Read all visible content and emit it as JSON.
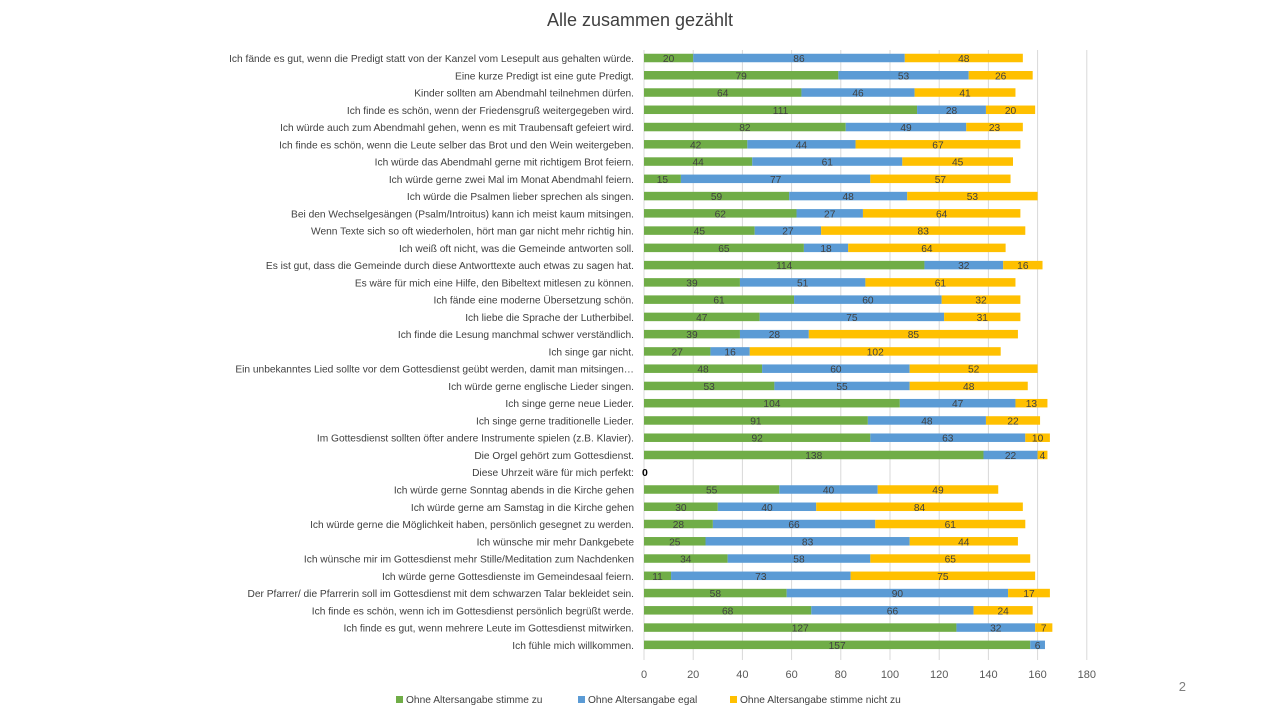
{
  "slide": {
    "title": "Alle zusammen gezählt",
    "page_number": "2"
  },
  "chart_data": {
    "type": "bar",
    "orientation": "horizontal",
    "stacked": true,
    "title": "Alle zusammen gezählt",
    "xlabel": "",
    "ylabel": "",
    "xlim": [
      0,
      180
    ],
    "xticks": [
      0,
      20,
      40,
      60,
      80,
      100,
      120,
      140,
      160,
      180
    ],
    "grid": true,
    "legend_position": "bottom",
    "categories": [
      "Ich fände es gut, wenn die Predigt statt von der Kanzel vom Lesepult aus gehalten würde.",
      "Eine kurze Predigt ist eine gute Predigt.",
      "Kinder sollten am Abendmahl teilnehmen dürfen.",
      "Ich finde es schön, wenn der Friedensgruß weitergegeben wird.",
      "Ich würde auch zum Abendmahl gehen, wenn es mit Traubensaft gefeiert wird.",
      "Ich finde es schön, wenn die Leute selber das Brot und den Wein weitergeben.",
      "Ich würde das Abendmahl gerne mit richtigem Brot feiern.",
      "Ich würde gerne zwei Mal im Monat Abendmahl feiern.",
      "Ich würde die Psalmen lieber sprechen als singen.",
      "Bei den Wechselgesängen (Psalm/Introitus) kann ich meist kaum mitsingen.",
      "Wenn Texte sich so oft wiederholen, hört man gar nicht mehr richtig hin.",
      "Ich weiß oft nicht, was die Gemeinde antworten soll.",
      "Es ist gut, dass die Gemeinde durch diese Antworttexte auch etwas zu sagen hat.",
      "Es wäre für mich eine Hilfe, den Bibeltext mitlesen zu können.",
      "Ich fände eine moderne Übersetzung schön.",
      "Ich liebe die Sprache der Lutherbibel.",
      "Ich finde die Lesung manchmal schwer verständlich.",
      "Ich singe gar nicht.",
      "Ein unbekanntes Lied sollte vor dem Gottesdienst geübt werden, damit man mitsingen…",
      "Ich würde gerne englische Lieder singen.",
      "Ich singe gerne neue Lieder.",
      "Ich singe gerne traditionelle Lieder.",
      "Im Gottesdienst sollten öfter andere Instrumente spielen (z.B. Klavier).",
      "Die Orgel gehört zum Gottesdienst.",
      "Diese Uhrzeit wäre für mich perfekt:",
      "Ich würde gerne Sonntag abends in die Kirche gehen",
      "Ich würde gerne am Samstag in die Kirche gehen",
      "Ich würde gerne die Möglichkeit haben, persönlich gesegnet zu werden.",
      "Ich wünsche mir mehr Dankgebete",
      "Ich wünsche mir im Gottesdienst mehr Stille/Meditation zum Nachdenken",
      "Ich würde gerne Gottesdienste im Gemeindesaal feiern.",
      "Der Pfarrer/ die Pfarrerin soll im Gottesdienst mit dem schwarzen Talar bekleidet sein.",
      "Ich finde es schön, wenn ich im Gottesdienst persönlich begrüßt werde.",
      "Ich finde es gut, wenn mehrere Leute im Gottesdienst mitwirken.",
      "Ich fühle mich willkommen."
    ],
    "series": [
      {
        "name": "Ohne Altersangabe stimme zu",
        "color": "#70ad47",
        "values": [
          20,
          79,
          64,
          111,
          82,
          42,
          44,
          15,
          59,
          62,
          45,
          65,
          114,
          39,
          61,
          47,
          39,
          27,
          48,
          53,
          104,
          91,
          92,
          138,
          0,
          55,
          30,
          28,
          25,
          34,
          11,
          58,
          68,
          127,
          157
        ]
      },
      {
        "name": "Ohne Altersangabe egal",
        "color": "#5b9bd5",
        "values": [
          86,
          53,
          46,
          28,
          49,
          44,
          61,
          77,
          48,
          27,
          27,
          18,
          32,
          51,
          60,
          75,
          28,
          16,
          60,
          55,
          47,
          48,
          63,
          22,
          0,
          40,
          40,
          66,
          83,
          58,
          73,
          90,
          66,
          32,
          6
        ]
      },
      {
        "name": "Ohne Altersangabe stimme nicht zu",
        "color": "#ffc000",
        "values": [
          48,
          26,
          41,
          20,
          23,
          67,
          45,
          57,
          53,
          64,
          83,
          64,
          16,
          61,
          32,
          31,
          85,
          102,
          52,
          48,
          13,
          22,
          10,
          4,
          0,
          49,
          84,
          61,
          44,
          65,
          75,
          17,
          24,
          7,
          0
        ]
      }
    ],
    "total_labels": [
      "",
      "",
      "",
      "",
      "",
      "",
      "",
      "",
      "",
      "",
      "",
      "",
      "",
      "",
      "",
      "",
      "",
      "",
      "",
      "",
      "",
      "",
      "",
      "",
      "0",
      "",
      "",
      "",
      "",
      "",
      "",
      "",
      "",
      "",
      ""
    ]
  }
}
